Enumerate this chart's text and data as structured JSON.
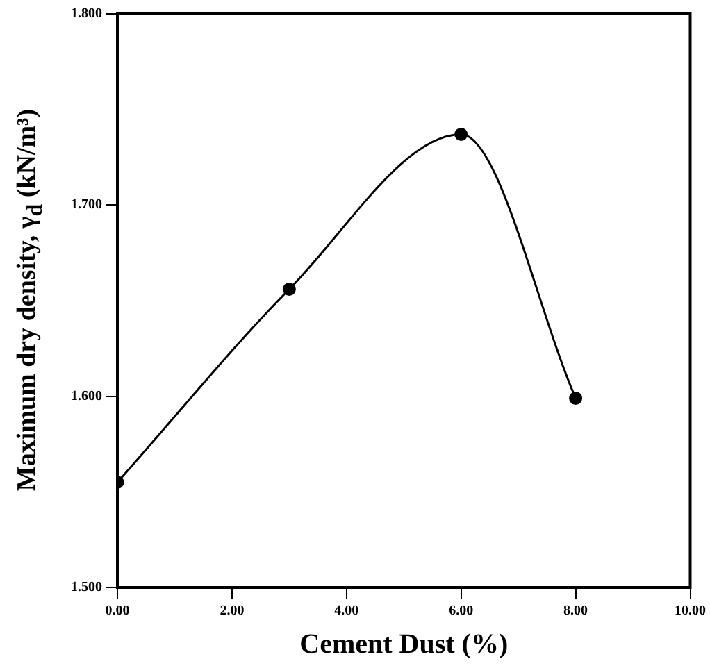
{
  "chart_data": {
    "type": "line",
    "xlabel": "Cement Dust (%)",
    "ylabel": "Maximum dry density, γ$_{d}$ (kN/m³)",
    "x": [
      0,
      3,
      6,
      8
    ],
    "series": [
      {
        "color": "#000000",
        "values": [
          1.555,
          1.656,
          1.737,
          1.599
        ]
      }
    ],
    "xlim": [
      0,
      10
    ],
    "xticks": [
      {
        "value": 0,
        "label": "0.00"
      },
      {
        "value": 2,
        "label": "2.00"
      },
      {
        "value": 4,
        "label": "4.00"
      },
      {
        "value": 6,
        "label": "6.00"
      },
      {
        "value": 8,
        "label": "8.00"
      },
      {
        "value": 10,
        "label": "10.00"
      }
    ],
    "ylim": [
      1.5,
      1.8
    ],
    "yticks": [
      {
        "value": 1.5,
        "label": "1.500"
      },
      {
        "value": 1.6,
        "label": "1.600"
      },
      {
        "value": 1.7,
        "label": "1.700"
      },
      {
        "value": 1.8,
        "label": "1.800"
      }
    ],
    "grid": false,
    "legend": false,
    "marker": "circle",
    "line_style": "solid"
  }
}
